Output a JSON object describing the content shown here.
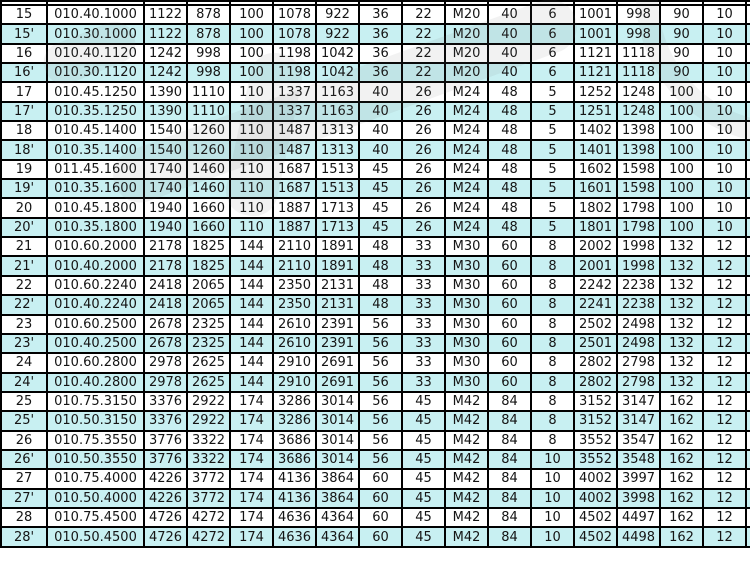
{
  "table": {
    "description_visible": false,
    "highlight_color": "#c8f0f2",
    "grid_color": "#000000",
    "rows": [
      {
        "highlighted": false,
        "cells": [
          "15",
          "010.40.1000",
          "1122",
          "878",
          "100",
          "1078",
          "922",
          "36",
          "22",
          "M20",
          "40",
          "6",
          "1001",
          "998",
          "90",
          "10"
        ]
      },
      {
        "highlighted": true,
        "cells": [
          "15'",
          "010.30.1000",
          "1122",
          "878",
          "100",
          "1078",
          "922",
          "36",
          "22",
          "M20",
          "40",
          "6",
          "1001",
          "998",
          "90",
          "10"
        ]
      },
      {
        "highlighted": false,
        "cells": [
          "16",
          "010.40.1120",
          "1242",
          "998",
          "100",
          "1198",
          "1042",
          "36",
          "22",
          "M20",
          "40",
          "6",
          "1121",
          "1118",
          "90",
          "10"
        ]
      },
      {
        "highlighted": true,
        "cells": [
          "16'",
          "010.30.1120",
          "1242",
          "998",
          "100",
          "1198",
          "1042",
          "36",
          "22",
          "M20",
          "40",
          "6",
          "1121",
          "1118",
          "90",
          "10"
        ]
      },
      {
        "highlighted": false,
        "cells": [
          "17",
          "010.45.1250",
          "1390",
          "1110",
          "110",
          "1337",
          "1163",
          "40",
          "26",
          "M24",
          "48",
          "5",
          "1252",
          "1248",
          "100",
          "10"
        ]
      },
      {
        "highlighted": true,
        "cells": [
          "17'",
          "010.35.1250",
          "1390",
          "1110",
          "110",
          "1337",
          "1163",
          "40",
          "26",
          "M24",
          "48",
          "5",
          "1251",
          "1248",
          "100",
          "10"
        ]
      },
      {
        "highlighted": false,
        "cells": [
          "18",
          "010.45.1400",
          "1540",
          "1260",
          "110",
          "1487",
          "1313",
          "40",
          "26",
          "M24",
          "48",
          "5",
          "1402",
          "1398",
          "100",
          "10"
        ]
      },
      {
        "highlighted": true,
        "cells": [
          "18'",
          "010.35.1400",
          "1540",
          "1260",
          "110",
          "1487",
          "1313",
          "40",
          "26",
          "M24",
          "48",
          "5",
          "1401",
          "1398",
          "100",
          "10"
        ]
      },
      {
        "highlighted": false,
        "cells": [
          "19",
          "011.45.1600",
          "1740",
          "1460",
          "110",
          "1687",
          "1513",
          "45",
          "26",
          "M24",
          "48",
          "5",
          "1602",
          "1598",
          "100",
          "10"
        ]
      },
      {
        "highlighted": true,
        "cells": [
          "19'",
          "010.35.1600",
          "1740",
          "1460",
          "110",
          "1687",
          "1513",
          "45",
          "26",
          "M24",
          "48",
          "5",
          "1601",
          "1598",
          "100",
          "10"
        ]
      },
      {
        "highlighted": false,
        "cells": [
          "20",
          "010.45.1800",
          "1940",
          "1660",
          "110",
          "1887",
          "1713",
          "45",
          "26",
          "M24",
          "48",
          "5",
          "1802",
          "1798",
          "100",
          "10"
        ]
      },
      {
        "highlighted": true,
        "cells": [
          "20'",
          "010.35.1800",
          "1940",
          "1660",
          "110",
          "1887",
          "1713",
          "45",
          "26",
          "M24",
          "48",
          "5",
          "1801",
          "1798",
          "100",
          "10"
        ]
      },
      {
        "highlighted": false,
        "cells": [
          "21",
          "010.60.2000",
          "2178",
          "1825",
          "144",
          "2110",
          "1891",
          "48",
          "33",
          "M30",
          "60",
          "8",
          "2002",
          "1998",
          "132",
          "12"
        ]
      },
      {
        "highlighted": true,
        "cells": [
          "21'",
          "010.40.2000",
          "2178",
          "1825",
          "144",
          "2110",
          "1891",
          "48",
          "33",
          "M30",
          "60",
          "8",
          "2001",
          "1998",
          "132",
          "12"
        ]
      },
      {
        "highlighted": false,
        "cells": [
          "22",
          "010.60.2240",
          "2418",
          "2065",
          "144",
          "2350",
          "2131",
          "48",
          "33",
          "M30",
          "60",
          "8",
          "2242",
          "2238",
          "132",
          "12"
        ]
      },
      {
        "highlighted": true,
        "cells": [
          "22'",
          "010.40.2240",
          "2418",
          "2065",
          "144",
          "2350",
          "2131",
          "48",
          "33",
          "M30",
          "60",
          "8",
          "2241",
          "2238",
          "132",
          "12"
        ]
      },
      {
        "highlighted": false,
        "cells": [
          "23",
          "010.60.2500",
          "2678",
          "2325",
          "144",
          "2610",
          "2391",
          "56",
          "33",
          "M30",
          "60",
          "8",
          "2502",
          "2498",
          "132",
          "12"
        ]
      },
      {
        "highlighted": true,
        "cells": [
          "23'",
          "010.40.2500",
          "2678",
          "2325",
          "144",
          "2610",
          "2391",
          "56",
          "33",
          "M30",
          "60",
          "8",
          "2501",
          "2498",
          "132",
          "12"
        ]
      },
      {
        "highlighted": false,
        "cells": [
          "24",
          "010.60.2800",
          "2978",
          "2625",
          "144",
          "2910",
          "2691",
          "56",
          "33",
          "M30",
          "60",
          "8",
          "2802",
          "2798",
          "132",
          "12"
        ]
      },
      {
        "highlighted": true,
        "cells": [
          "24'",
          "010.40.2800",
          "2978",
          "2625",
          "144",
          "2910",
          "2691",
          "56",
          "33",
          "M30",
          "60",
          "8",
          "2802",
          "2798",
          "132",
          "12"
        ]
      },
      {
        "highlighted": false,
        "cells": [
          "25",
          "010.75.3150",
          "3376",
          "2922",
          "174",
          "3286",
          "3014",
          "56",
          "45",
          "M42",
          "84",
          "8",
          "3152",
          "3147",
          "162",
          "12"
        ]
      },
      {
        "highlighted": true,
        "cells": [
          "25'",
          "010.50.3150",
          "3376",
          "2922",
          "174",
          "3286",
          "3014",
          "56",
          "45",
          "M42",
          "84",
          "8",
          "3152",
          "3147",
          "162",
          "12"
        ]
      },
      {
        "highlighted": false,
        "cells": [
          "26",
          "010.75.3550",
          "3776",
          "3322",
          "174",
          "3686",
          "3014",
          "56",
          "45",
          "M42",
          "84",
          "8",
          "3552",
          "3547",
          "162",
          "12"
        ]
      },
      {
        "highlighted": true,
        "cells": [
          "26'",
          "010.50.3550",
          "3776",
          "3322",
          "174",
          "3686",
          "3014",
          "56",
          "45",
          "M42",
          "84",
          "10",
          "3552",
          "3548",
          "162",
          "12"
        ]
      },
      {
        "highlighted": false,
        "cells": [
          "27",
          "010.75.4000",
          "4226",
          "3772",
          "174",
          "4136",
          "3864",
          "60",
          "45",
          "M42",
          "84",
          "10",
          "4002",
          "3997",
          "162",
          "12"
        ]
      },
      {
        "highlighted": true,
        "cells": [
          "27'",
          "010.50.4000",
          "4226",
          "3772",
          "174",
          "4136",
          "3864",
          "60",
          "45",
          "M42",
          "84",
          "10",
          "4002",
          "3998",
          "162",
          "12"
        ]
      },
      {
        "highlighted": false,
        "cells": [
          "28",
          "010.75.4500",
          "4726",
          "4272",
          "174",
          "4636",
          "4364",
          "60",
          "45",
          "M42",
          "84",
          "10",
          "4502",
          "4497",
          "162",
          "12"
        ]
      },
      {
        "highlighted": true,
        "cells": [
          "28'",
          "010.50.4500",
          "4726",
          "4272",
          "174",
          "4636",
          "4364",
          "60",
          "45",
          "M42",
          "84",
          "10",
          "4502",
          "4498",
          "162",
          "12"
        ]
      }
    ]
  }
}
